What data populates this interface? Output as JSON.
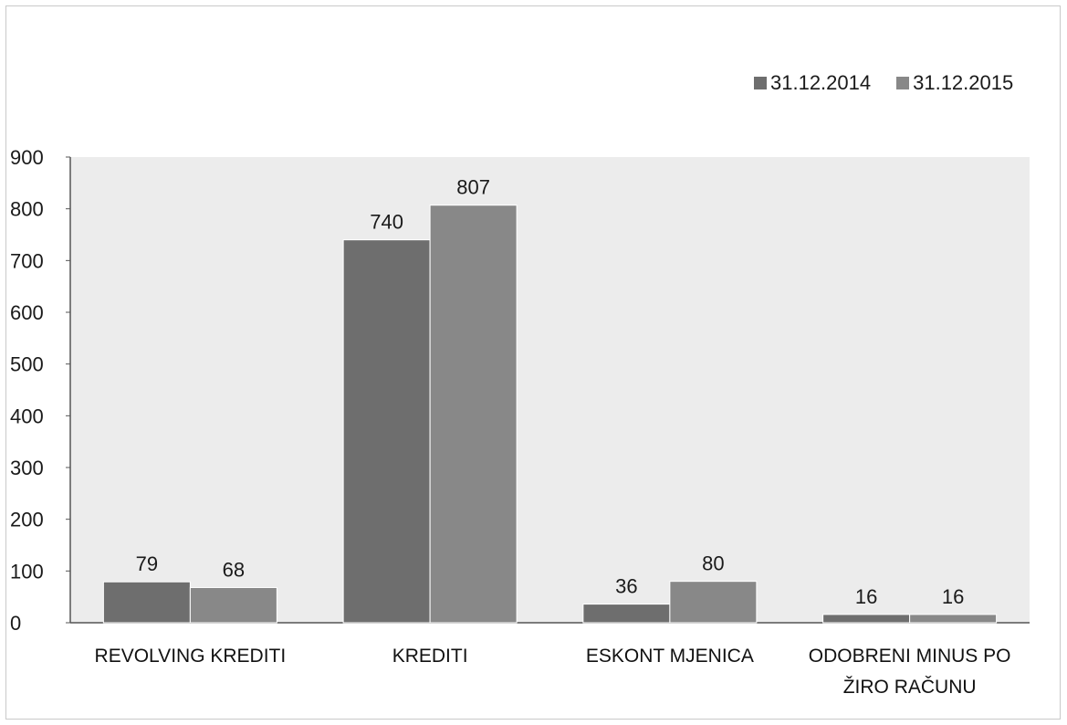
{
  "chart_data": {
    "type": "bar",
    "categories": [
      "REVOLVING KREDITI",
      "KREDITI",
      "ESKONT MJENICA",
      "ODOBRENI MINUS PO ŽIRO RAČUNU"
    ],
    "category_lines": [
      [
        "REVOLVING KREDITI"
      ],
      [
        "KREDITI"
      ],
      [
        "ESKONT MJENICA"
      ],
      [
        "ODOBRENI MINUS PO",
        "ŽIRO RAČUNU"
      ]
    ],
    "series": [
      {
        "name": "31.12.2014",
        "values": [
          79,
          740,
          36,
          16
        ],
        "color": "#6e6e6e"
      },
      {
        "name": "31.12.2015",
        "values": [
          68,
          807,
          80,
          16
        ],
        "color": "#888888"
      }
    ],
    "yticks": [
      "0",
      "100",
      "200",
      "300",
      "400",
      "500",
      "600",
      "700",
      "800",
      "900"
    ],
    "ylim": [
      0,
      900
    ],
    "title": "",
    "xlabel": "",
    "ylabel": "",
    "legend_position": "top-right",
    "grid": false,
    "plot_background": "#ececec"
  }
}
